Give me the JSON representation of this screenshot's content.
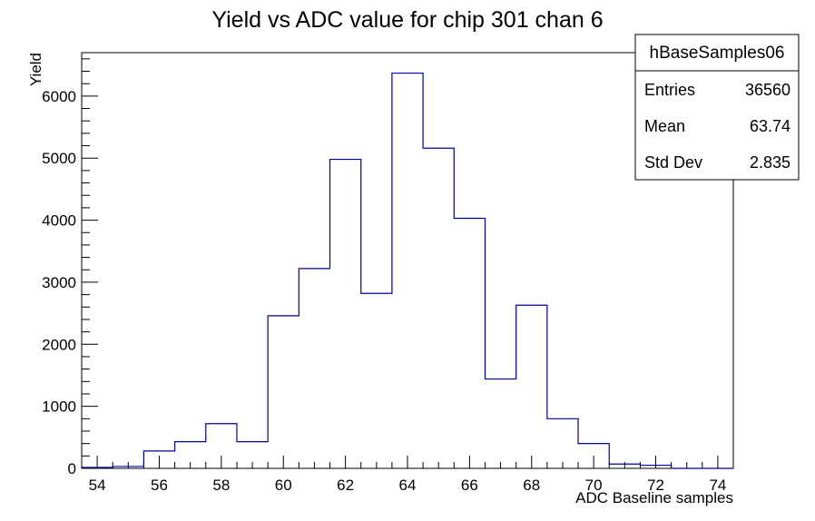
{
  "chart_data": {
    "type": "bar",
    "title": "Yield vs ADC value for chip 301 chan 6",
    "xlabel": "ADC Baseline samples",
    "ylabel": "Yield",
    "xlim": [
      53.5,
      74.5
    ],
    "ylim": [
      0,
      6700
    ],
    "x_ticks": [
      54,
      56,
      58,
      60,
      62,
      64,
      66,
      68,
      70,
      72,
      74
    ],
    "y_ticks": [
      0,
      1000,
      2000,
      3000,
      4000,
      5000,
      6000
    ],
    "bin_width": 1,
    "bin_low_edges": [
      53.5,
      54.5,
      55.5,
      56.5,
      57.5,
      58.5,
      59.5,
      60.5,
      61.5,
      62.5,
      63.5,
      64.5,
      65.5,
      66.5,
      67.5,
      68.5,
      69.5,
      70.5,
      71.5,
      72.5,
      73.5
    ],
    "values": [
      15,
      30,
      280,
      430,
      720,
      430,
      2460,
      3220,
      4980,
      2820,
      6370,
      5160,
      4030,
      1440,
      2630,
      800,
      400,
      70,
      50,
      0,
      0
    ],
    "line_color": "#000099",
    "grid": false,
    "legend_position": "top-right",
    "stats_box": {
      "name": "hBaseSamples06",
      "rows": [
        {
          "label": "Entries",
          "value": "36560"
        },
        {
          "label": "Mean",
          "value": "63.74"
        },
        {
          "label": "Std Dev",
          "value": "2.835"
        }
      ]
    }
  }
}
